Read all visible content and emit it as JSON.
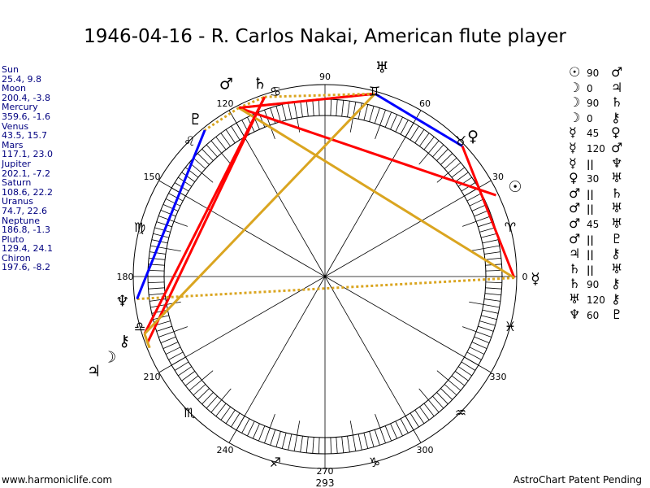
{
  "title": "1946-04-16 - R. Carlos Nakai, American flute player",
  "planets": [
    {
      "name": "Sun",
      "glyph": "☉",
      "coords": "25.4, 9.8",
      "lon": 25.4
    },
    {
      "name": "Moon",
      "glyph": "☽",
      "coords": "200.4, -3.8",
      "lon": 200.4
    },
    {
      "name": "Mercury",
      "glyph": "☿",
      "coords": "359.6, -1.6",
      "lon": 359.6
    },
    {
      "name": "Venus",
      "glyph": "♀",
      "coords": "43.5, 15.7",
      "lon": 43.5
    },
    {
      "name": "Mars",
      "glyph": "♂",
      "coords": "117.1, 23.0",
      "lon": 117.1
    },
    {
      "name": "Jupiter",
      "glyph": "♃",
      "coords": "202.1, -7.2",
      "lon": 202.1
    },
    {
      "name": "Saturn",
      "glyph": "♄",
      "coords": "108.6, 22.2",
      "lon": 108.6
    },
    {
      "name": "Uranus",
      "glyph": "♅",
      "coords": "74.7, 22.6",
      "lon": 74.7
    },
    {
      "name": "Neptune",
      "glyph": "♆",
      "coords": "186.8, -1.3",
      "lon": 186.8
    },
    {
      "name": "Pluto",
      "glyph": "♇",
      "coords": "129.4, 24.1",
      "lon": 129.4
    },
    {
      "name": "Chiron",
      "glyph": "⚷",
      "coords": "197.6, -8.2",
      "lon": 197.6
    }
  ],
  "aspects": [
    {
      "p1": "Sun",
      "g1": "☉",
      "type": "90",
      "p2": "Mars",
      "g2": "♂"
    },
    {
      "p1": "Moon",
      "g1": "☽",
      "type": "0",
      "p2": "Jupiter",
      "g2": "♃"
    },
    {
      "p1": "Moon",
      "g1": "☽",
      "type": "90",
      "p2": "Saturn",
      "g2": "♄"
    },
    {
      "p1": "Moon",
      "g1": "☽",
      "type": "0",
      "p2": "Chiron",
      "g2": "⚷"
    },
    {
      "p1": "Mercury",
      "g1": "☿",
      "type": "45",
      "p2": "Venus",
      "g2": "♀"
    },
    {
      "p1": "Mercury",
      "g1": "☿",
      "type": "120",
      "p2": "Mars",
      "g2": "♂"
    },
    {
      "p1": "Mercury",
      "g1": "☿",
      "type": "||",
      "p2": "Neptune",
      "g2": "♆"
    },
    {
      "p1": "Venus",
      "g1": "♀",
      "type": "30",
      "p2": "Uranus",
      "g2": "♅"
    },
    {
      "p1": "Mars",
      "g1": "♂",
      "type": "||",
      "p2": "Saturn",
      "g2": "♄"
    },
    {
      "p1": "Mars",
      "g1": "♂",
      "type": "||",
      "p2": "Uranus",
      "g2": "♅"
    },
    {
      "p1": "Mars",
      "g1": "♂",
      "type": "45",
      "p2": "Uranus",
      "g2": "♅"
    },
    {
      "p1": "Mars",
      "g1": "♂",
      "type": "||",
      "p2": "Pluto",
      "g2": "♇"
    },
    {
      "p1": "Jupiter",
      "g1": "♃",
      "type": "||",
      "p2": "Chiron",
      "g2": "⚷"
    },
    {
      "p1": "Saturn",
      "g1": "♄",
      "type": "||",
      "p2": "Uranus",
      "g2": "♅"
    },
    {
      "p1": "Saturn",
      "g1": "♄",
      "type": "90",
      "p2": "Chiron",
      "g2": "⚷"
    },
    {
      "p1": "Uranus",
      "g1": "♅",
      "type": "120",
      "p2": "Chiron",
      "g2": "⚷"
    },
    {
      "p1": "Neptune",
      "g1": "♆",
      "type": "60",
      "p2": "Pluto",
      "g2": "♇"
    }
  ],
  "aspect_colors": {
    "90": "#ff0000",
    "45": "#ff0000",
    "120": "#daa520",
    "0": "#daa520",
    "60": "#0000ff",
    "30": "#0000ff",
    "||": "#daa520"
  },
  "signs": [
    "♈",
    "♉",
    "♊",
    "♋",
    "♌",
    "♍",
    "♎",
    "♏",
    "♐",
    "♑",
    "♒",
    "♓"
  ],
  "degree_labels": [
    "0",
    "30",
    "60",
    "90",
    "120",
    "150",
    "180",
    "210",
    "240",
    "270",
    "300",
    "330"
  ],
  "bottom_value": "293",
  "footer": {
    "left": "www.harmoniclife.com",
    "right": "AstroChart Patent Pending"
  }
}
